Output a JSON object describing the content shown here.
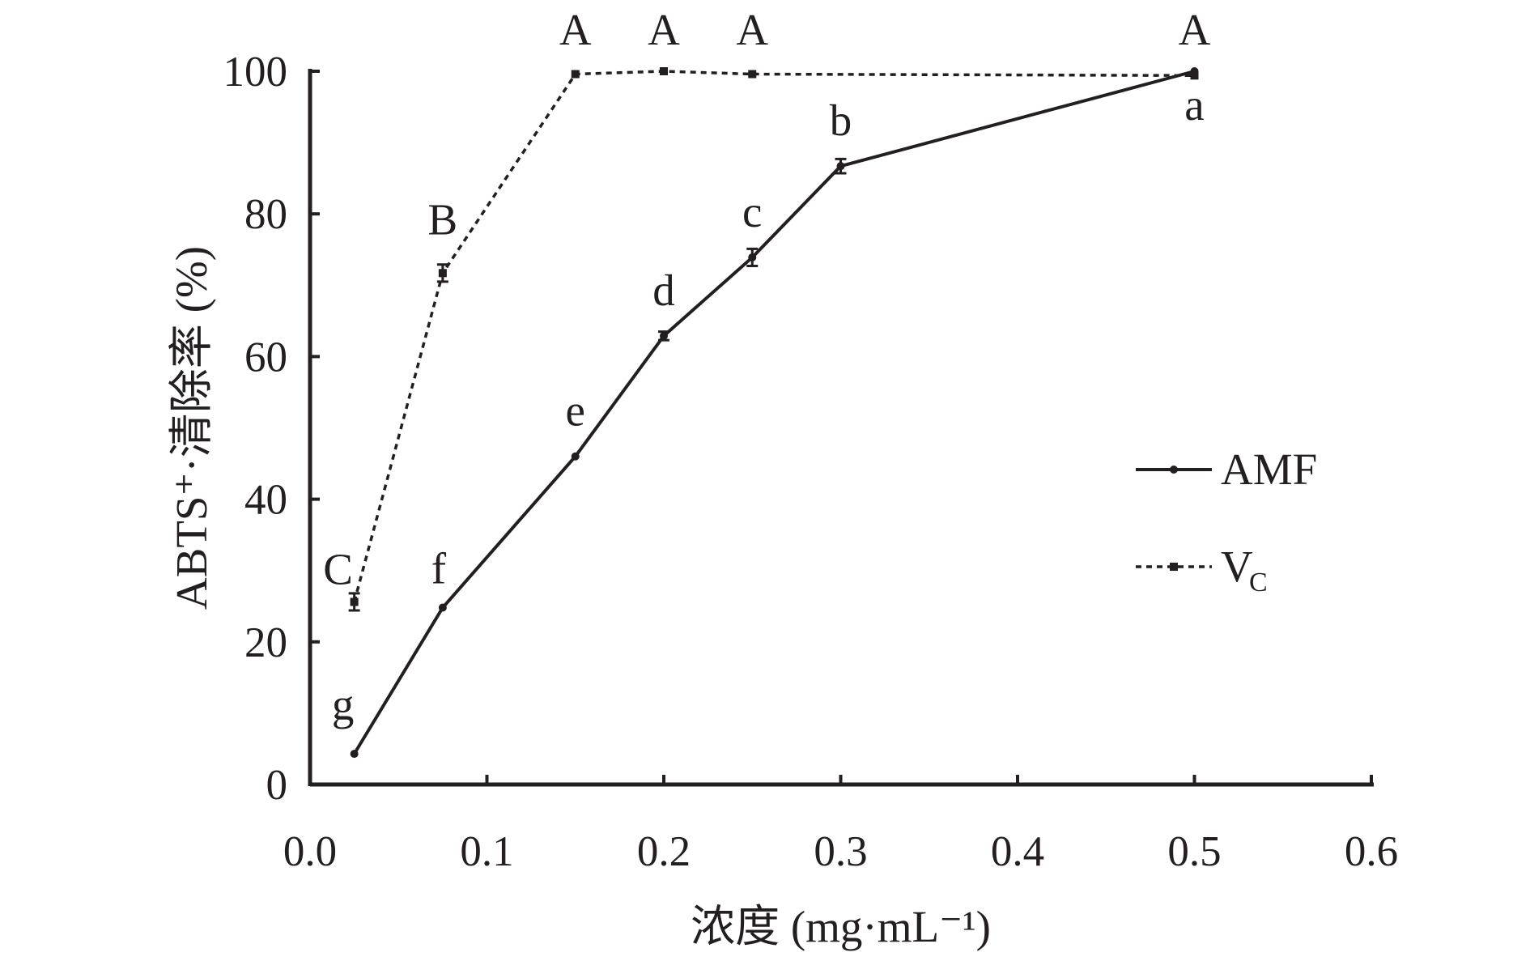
{
  "chart_data": {
    "type": "line",
    "title": "",
    "xlabel": "浓度 (mg·mL⁻¹)",
    "ylabel": "ABTS⁺·清除率 (%)",
    "xlim": [
      0,
      0.6
    ],
    "ylim": [
      0,
      100
    ],
    "xticks": [
      "0.0",
      "0.1",
      "0.2",
      "0.3",
      "0.4",
      "0.5",
      "0.6"
    ],
    "yticks": [
      "0",
      "20",
      "40",
      "60",
      "80",
      "100"
    ],
    "grid": false,
    "legend_position": "right-middle",
    "series": [
      {
        "name": "AMF",
        "style": "solid",
        "x": [
          0.025,
          0.075,
          0.15,
          0.2,
          0.25,
          0.3,
          0.5
        ],
        "y": [
          4.3,
          24.8,
          46.0,
          62.9,
          73.9,
          86.7,
          100.0
        ],
        "err": [
          0.3,
          0.3,
          0.3,
          0.6,
          1.2,
          1.0,
          0.3
        ],
        "letters": [
          "g",
          "f",
          "e",
          "d",
          "c",
          "b",
          "a"
        ]
      },
      {
        "name": "VC",
        "name_main": "V",
        "name_sub": "C",
        "style": "dotted",
        "x": [
          0.025,
          0.075,
          0.15,
          0.2,
          0.25,
          0.5
        ],
        "y": [
          25.6,
          71.7,
          99.6,
          100.0,
          99.6,
          99.4
        ],
        "err": [
          1.2,
          1.2,
          0.3,
          0.3,
          0.3,
          0.3
        ],
        "letters": [
          "C",
          "B",
          "A",
          "A",
          "A",
          "A"
        ]
      }
    ]
  }
}
